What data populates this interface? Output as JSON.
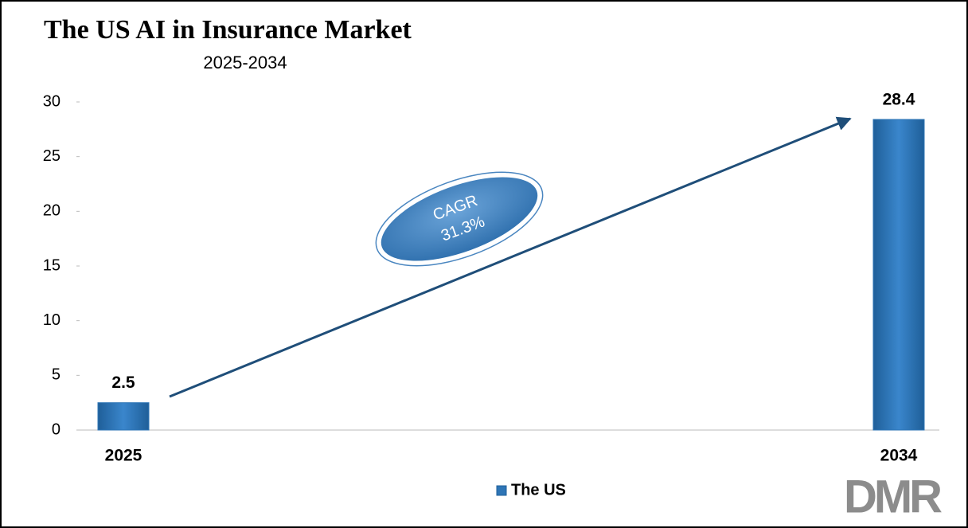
{
  "chart_data": {
    "type": "bar",
    "title": "The US AI in Insurance Market",
    "subtitle": "2025-2034",
    "categories": [
      "2025",
      "2034"
    ],
    "series": [
      {
        "name": "The US",
        "color": "#2e75b6",
        "values": [
          2.5,
          28.4
        ]
      }
    ],
    "ylim": [
      0,
      30
    ],
    "yticks": [
      0,
      5,
      10,
      15,
      20,
      25,
      30
    ],
    "grid": false,
    "legend": "bottom",
    "annotation": {
      "label": "CAGR",
      "value": "31.3%"
    },
    "logo": "DMR"
  }
}
